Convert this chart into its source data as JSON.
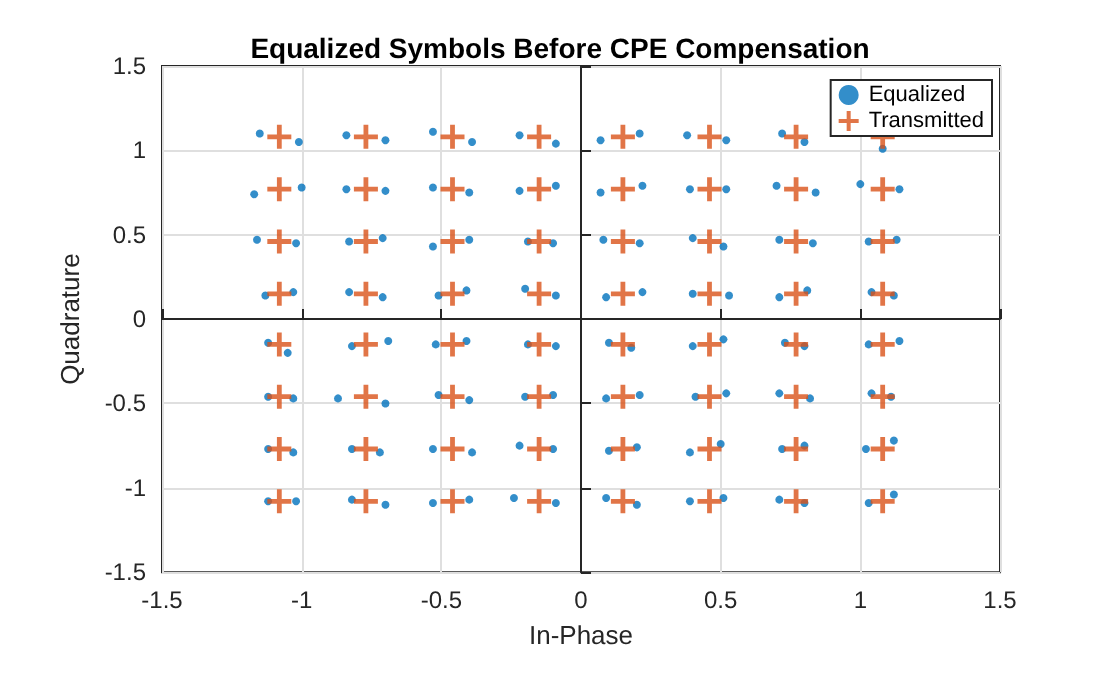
{
  "chart_data": {
    "type": "scatter",
    "title": "Equalized Symbols Before CPE Compensation",
    "xlabel": "In-Phase",
    "ylabel": "Quadrature",
    "xlim": [
      -1.5,
      1.5
    ],
    "xticks": [
      -1.5,
      -1,
      -0.5,
      0,
      0.5,
      1,
      1.5
    ],
    "ylim": [
      -1.5,
      1.5
    ],
    "yticks": [
      -1.5,
      -1,
      -0.5,
      0,
      0.5,
      1,
      1.5
    ],
    "grid": true,
    "legend": "top right",
    "series": [
      {
        "name": "Equalized",
        "color": "#0072bd",
        "marker": "circle",
        "x": [
          -1.15,
          -1.01,
          -0.84,
          -0.7,
          -0.53,
          -0.39,
          -0.22,
          -0.09,
          0.07,
          0.21,
          0.38,
          0.52,
          0.72,
          0.8,
          1.08,
          -1.17,
          -1.0,
          -0.84,
          -0.7,
          -0.53,
          -0.4,
          -0.22,
          -0.09,
          0.07,
          0.22,
          0.39,
          0.52,
          0.7,
          0.84,
          1.0,
          1.14,
          -1.16,
          -1.02,
          -0.83,
          -0.71,
          -0.53,
          -0.4,
          -0.19,
          -0.1,
          0.08,
          0.21,
          0.4,
          0.51,
          0.71,
          0.83,
          1.03,
          1.13,
          -1.13,
          -1.03,
          -0.83,
          -0.71,
          -0.51,
          -0.41,
          -0.2,
          -0.09,
          0.09,
          0.22,
          0.4,
          0.53,
          0.71,
          0.81,
          1.04,
          1.12,
          -1.12,
          -1.05,
          -0.82,
          -0.69,
          -0.52,
          -0.41,
          -0.19,
          -0.09,
          0.1,
          0.18,
          0.4,
          0.51,
          0.73,
          0.8,
          1.03,
          1.14,
          -1.12,
          -1.03,
          -0.87,
          -0.7,
          -0.51,
          -0.4,
          -0.2,
          -0.1,
          0.09,
          0.21,
          0.41,
          0.52,
          0.71,
          0.82,
          1.04,
          1.11,
          -1.12,
          -1.03,
          -0.82,
          -0.72,
          -0.53,
          -0.39,
          -0.22,
          -0.1,
          0.1,
          0.2,
          0.39,
          0.5,
          0.72,
          0.8,
          1.02,
          1.12,
          -1.12,
          -1.02,
          -0.82,
          -0.7,
          -0.53,
          -0.4,
          -0.24,
          -0.09,
          0.09,
          0.2,
          0.39,
          0.51,
          0.71,
          0.8,
          1.03,
          1.12
        ],
        "values": [
          1.1,
          1.05,
          1.09,
          1.06,
          1.11,
          1.05,
          1.09,
          1.04,
          1.06,
          1.1,
          1.09,
          1.06,
          1.1,
          1.05,
          1.01,
          0.74,
          0.78,
          0.77,
          0.76,
          0.78,
          0.75,
          0.76,
          0.79,
          0.75,
          0.79,
          0.77,
          0.77,
          0.79,
          0.75,
          0.8,
          0.77,
          0.47,
          0.45,
          0.46,
          0.48,
          0.43,
          0.47,
          0.46,
          0.45,
          0.47,
          0.45,
          0.48,
          0.43,
          0.47,
          0.45,
          0.46,
          0.47,
          0.14,
          0.16,
          0.16,
          0.13,
          0.14,
          0.17,
          0.18,
          0.14,
          0.13,
          0.16,
          0.15,
          0.14,
          0.13,
          0.17,
          0.16,
          0.14,
          -0.14,
          -0.2,
          -0.16,
          -0.13,
          -0.15,
          -0.13,
          -0.15,
          -0.16,
          -0.14,
          -0.17,
          -0.16,
          -0.12,
          -0.14,
          -0.16,
          -0.15,
          -0.13,
          -0.46,
          -0.47,
          -0.47,
          -0.5,
          -0.45,
          -0.48,
          -0.46,
          -0.45,
          -0.47,
          -0.45,
          -0.46,
          -0.44,
          -0.44,
          -0.47,
          -0.44,
          -0.46,
          -0.77,
          -0.79,
          -0.77,
          -0.79,
          -0.77,
          -0.79,
          -0.75,
          -0.77,
          -0.78,
          -0.76,
          -0.79,
          -0.74,
          -0.77,
          -0.75,
          -0.77,
          -0.72,
          -1.08,
          -1.08,
          -1.07,
          -1.1,
          -1.09,
          -1.07,
          -1.06,
          -1.09,
          -1.06,
          -1.1,
          -1.08,
          -1.06,
          -1.07,
          -1.09,
          -1.09,
          -1.04
        ]
      },
      {
        "name": "Transmitted",
        "color": "#d95319",
        "marker": "cross",
        "x": [
          -1.08,
          -0.77,
          -0.46,
          -0.15,
          0.15,
          0.46,
          0.77,
          1.08,
          -1.08,
          -0.77,
          -0.46,
          -0.15,
          0.15,
          0.46,
          0.77,
          1.08,
          -1.08,
          -0.77,
          -0.46,
          -0.15,
          0.15,
          0.46,
          0.77,
          1.08,
          -1.08,
          -0.77,
          -0.46,
          -0.15,
          0.15,
          0.46,
          0.77,
          1.08,
          -1.08,
          -0.77,
          -0.46,
          -0.15,
          0.15,
          0.46,
          0.77,
          1.08,
          -1.08,
          -0.77,
          -0.46,
          -0.15,
          0.15,
          0.46,
          0.77,
          1.08,
          -1.08,
          -0.77,
          -0.46,
          -0.15,
          0.15,
          0.46,
          0.77,
          1.08,
          -1.08,
          -0.77,
          -0.46,
          -0.15,
          0.15,
          0.46,
          0.77,
          1.08
        ],
        "values": [
          1.08,
          1.08,
          1.08,
          1.08,
          1.08,
          1.08,
          1.08,
          1.08,
          0.77,
          0.77,
          0.77,
          0.77,
          0.77,
          0.77,
          0.77,
          0.77,
          0.46,
          0.46,
          0.46,
          0.46,
          0.46,
          0.46,
          0.46,
          0.46,
          0.15,
          0.15,
          0.15,
          0.15,
          0.15,
          0.15,
          0.15,
          0.15,
          -0.15,
          -0.15,
          -0.15,
          -0.15,
          -0.15,
          -0.15,
          -0.15,
          -0.15,
          -0.46,
          -0.46,
          -0.46,
          -0.46,
          -0.46,
          -0.46,
          -0.46,
          -0.46,
          -0.77,
          -0.77,
          -0.77,
          -0.77,
          -0.77,
          -0.77,
          -0.77,
          -0.77,
          -1.08,
          -1.08,
          -1.08,
          -1.08,
          -1.08,
          -1.08,
          -1.08,
          -1.08
        ]
      }
    ]
  }
}
